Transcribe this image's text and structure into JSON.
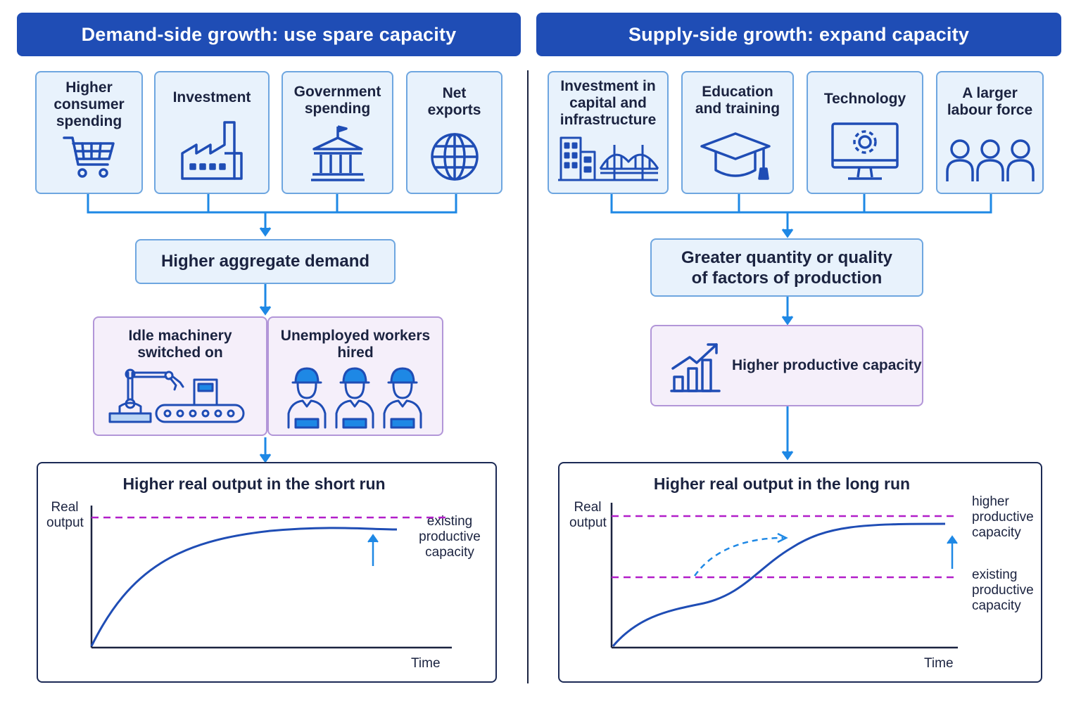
{
  "demand": {
    "banner": "Demand-side growth: use spare capacity",
    "cards": [
      {
        "label": "Higher\nconsumer\nspending",
        "icon": "shopping-cart-icon"
      },
      {
        "label": "Investment",
        "icon": "factory-icon"
      },
      {
        "label": "Government\nspending",
        "icon": "government-building-icon"
      },
      {
        "label": "Net\nexports",
        "icon": "globe-icon"
      }
    ],
    "aggregate": "Higher aggregate demand",
    "idle": {
      "label": "Idle machinery\nswitched on",
      "icon": "robot-arm-conveyor-icon"
    },
    "workers": {
      "label": "Unemployed workers\nhired",
      "icon": "workers-icon"
    },
    "chart": {
      "title": "Higher real output in the short run",
      "ylabel": "Real\noutput",
      "xlabel": "Time",
      "capacity_label": "existing\nproductive\ncapacity"
    }
  },
  "supply": {
    "banner": "Supply-side growth: expand capacity",
    "cards": [
      {
        "label": "Investment in\ncapital and\ninfrastructure",
        "icon": "buildings-bridge-icon"
      },
      {
        "label": "Education\nand training",
        "icon": "graduation-cap-icon"
      },
      {
        "label": "Technology",
        "icon": "computer-gear-icon"
      },
      {
        "label": "A larger\nlabour force",
        "icon": "people-group-icon"
      }
    ],
    "factors": "Greater quantity or quality\nof factors of production",
    "capacity": {
      "label": "Higher productive capacity",
      "icon": "rising-bar-chart-icon"
    },
    "chart": {
      "title": "Higher real output in the long run",
      "ylabel": "Real\noutput",
      "xlabel": "Time",
      "higher_label": "higher\nproductive\ncapacity",
      "existing_label": "existing\nproductive\ncapacity"
    }
  },
  "colors": {
    "banner": "#1f4db5",
    "connector": "#1e88e5",
    "curve": "#1f4db5",
    "capacity_line": "#b21fc9",
    "card_fill": "#e8f2fc",
    "purple_fill": "#f5effa"
  }
}
